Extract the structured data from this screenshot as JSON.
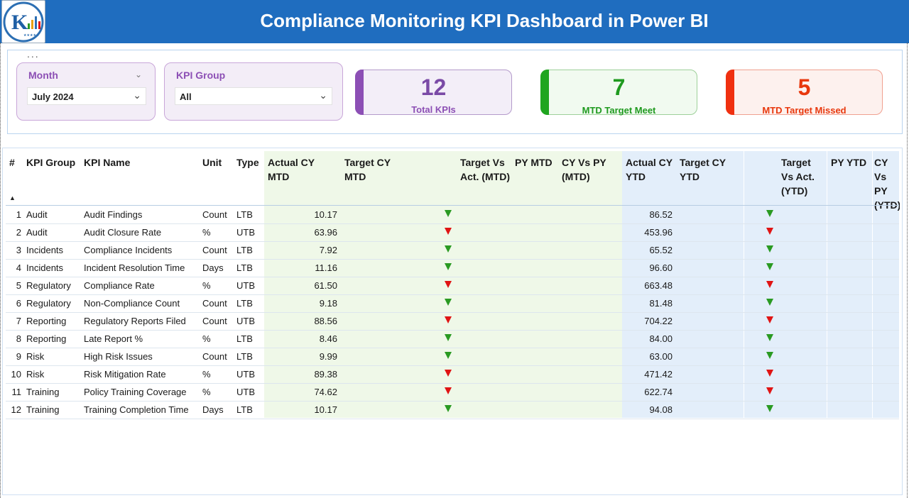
{
  "header": {
    "title": "Compliance Monitoring KPI Dashboard in Power BI"
  },
  "colors": {
    "header_bg": "#1f6dbf",
    "purple": "#8c4fb5",
    "green": "#2a9a22",
    "red": "#e8380d"
  },
  "filters": {
    "more_label": "...",
    "month": {
      "label": "Month",
      "value": "July 2024"
    },
    "kpi_group": {
      "label": "KPI Group",
      "value": "All"
    }
  },
  "cards": [
    {
      "value": "12",
      "label": "Total KPIs"
    },
    {
      "value": "7",
      "label": "MTD Target Meet"
    },
    {
      "value": "5",
      "label": "MTD Target Missed"
    }
  ],
  "table": {
    "headers": {
      "num": "#",
      "group": "KPI Group",
      "name": "KPI Name",
      "unit": "Unit",
      "type": "Type",
      "actual_mtd": "Actual CY MTD",
      "target_mtd": "Target CY MTD",
      "tva_mtd": "Target Vs Act. (MTD)",
      "py_mtd": "PY MTD",
      "cyvpy_mtd": "CY Vs PY (MTD)",
      "actual_ytd": "Actual CY YTD",
      "target_ytd": "Target CY YTD",
      "tva_ytd": "Target Vs Act. (YTD)",
      "py_ytd": "PY YTD",
      "cyvpy_ytd": "CY Vs PY (YTD)"
    },
    "rows": [
      {
        "num": "1",
        "group": "Audit",
        "name": "Audit Findings",
        "unit": "Count",
        "type": "LTB",
        "actual_mtd": "10.17",
        "mtd_status": "good",
        "actual_ytd": "86.52",
        "ytd_status": "good"
      },
      {
        "num": "2",
        "group": "Audit",
        "name": "Audit Closure Rate",
        "unit": "%",
        "type": "UTB",
        "actual_mtd": "63.96",
        "mtd_status": "bad",
        "actual_ytd": "453.96",
        "ytd_status": "bad"
      },
      {
        "num": "3",
        "group": "Incidents",
        "name": "Compliance Incidents",
        "unit": "Count",
        "type": "LTB",
        "actual_mtd": "7.92",
        "mtd_status": "good",
        "actual_ytd": "65.52",
        "ytd_status": "good"
      },
      {
        "num": "4",
        "group": "Incidents",
        "name": "Incident Resolution Time",
        "unit": "Days",
        "type": "LTB",
        "actual_mtd": "11.16",
        "mtd_status": "good",
        "actual_ytd": "96.60",
        "ytd_status": "good"
      },
      {
        "num": "5",
        "group": "Regulatory",
        "name": "Compliance Rate",
        "unit": "%",
        "type": "UTB",
        "actual_mtd": "61.50",
        "mtd_status": "bad",
        "actual_ytd": "663.48",
        "ytd_status": "bad"
      },
      {
        "num": "6",
        "group": "Regulatory",
        "name": "Non-Compliance Count",
        "unit": "Count",
        "type": "LTB",
        "actual_mtd": "9.18",
        "mtd_status": "good",
        "actual_ytd": "81.48",
        "ytd_status": "good"
      },
      {
        "num": "7",
        "group": "Reporting",
        "name": "Regulatory Reports Filed",
        "unit": "Count",
        "type": "UTB",
        "actual_mtd": "88.56",
        "mtd_status": "bad",
        "actual_ytd": "704.22",
        "ytd_status": "bad"
      },
      {
        "num": "8",
        "group": "Reporting",
        "name": "Late Report %",
        "unit": "%",
        "type": "LTB",
        "actual_mtd": "8.46",
        "mtd_status": "good",
        "actual_ytd": "84.00",
        "ytd_status": "good"
      },
      {
        "num": "9",
        "group": "Risk",
        "name": "High Risk Issues",
        "unit": "Count",
        "type": "LTB",
        "actual_mtd": "9.99",
        "mtd_status": "good",
        "actual_ytd": "63.00",
        "ytd_status": "good"
      },
      {
        "num": "10",
        "group": "Risk",
        "name": "Risk Mitigation Rate",
        "unit": "%",
        "type": "UTB",
        "actual_mtd": "89.38",
        "mtd_status": "bad",
        "actual_ytd": "471.42",
        "ytd_status": "bad"
      },
      {
        "num": "11",
        "group": "Training",
        "name": "Policy Training Coverage",
        "unit": "%",
        "type": "UTB",
        "actual_mtd": "74.62",
        "mtd_status": "bad",
        "actual_ytd": "622.74",
        "ytd_status": "bad"
      },
      {
        "num": "12",
        "group": "Training",
        "name": "Training Completion Time",
        "unit": "Days",
        "type": "LTB",
        "actual_mtd": "10.17",
        "mtd_status": "good",
        "actual_ytd": "94.08",
        "ytd_status": "good"
      }
    ]
  }
}
